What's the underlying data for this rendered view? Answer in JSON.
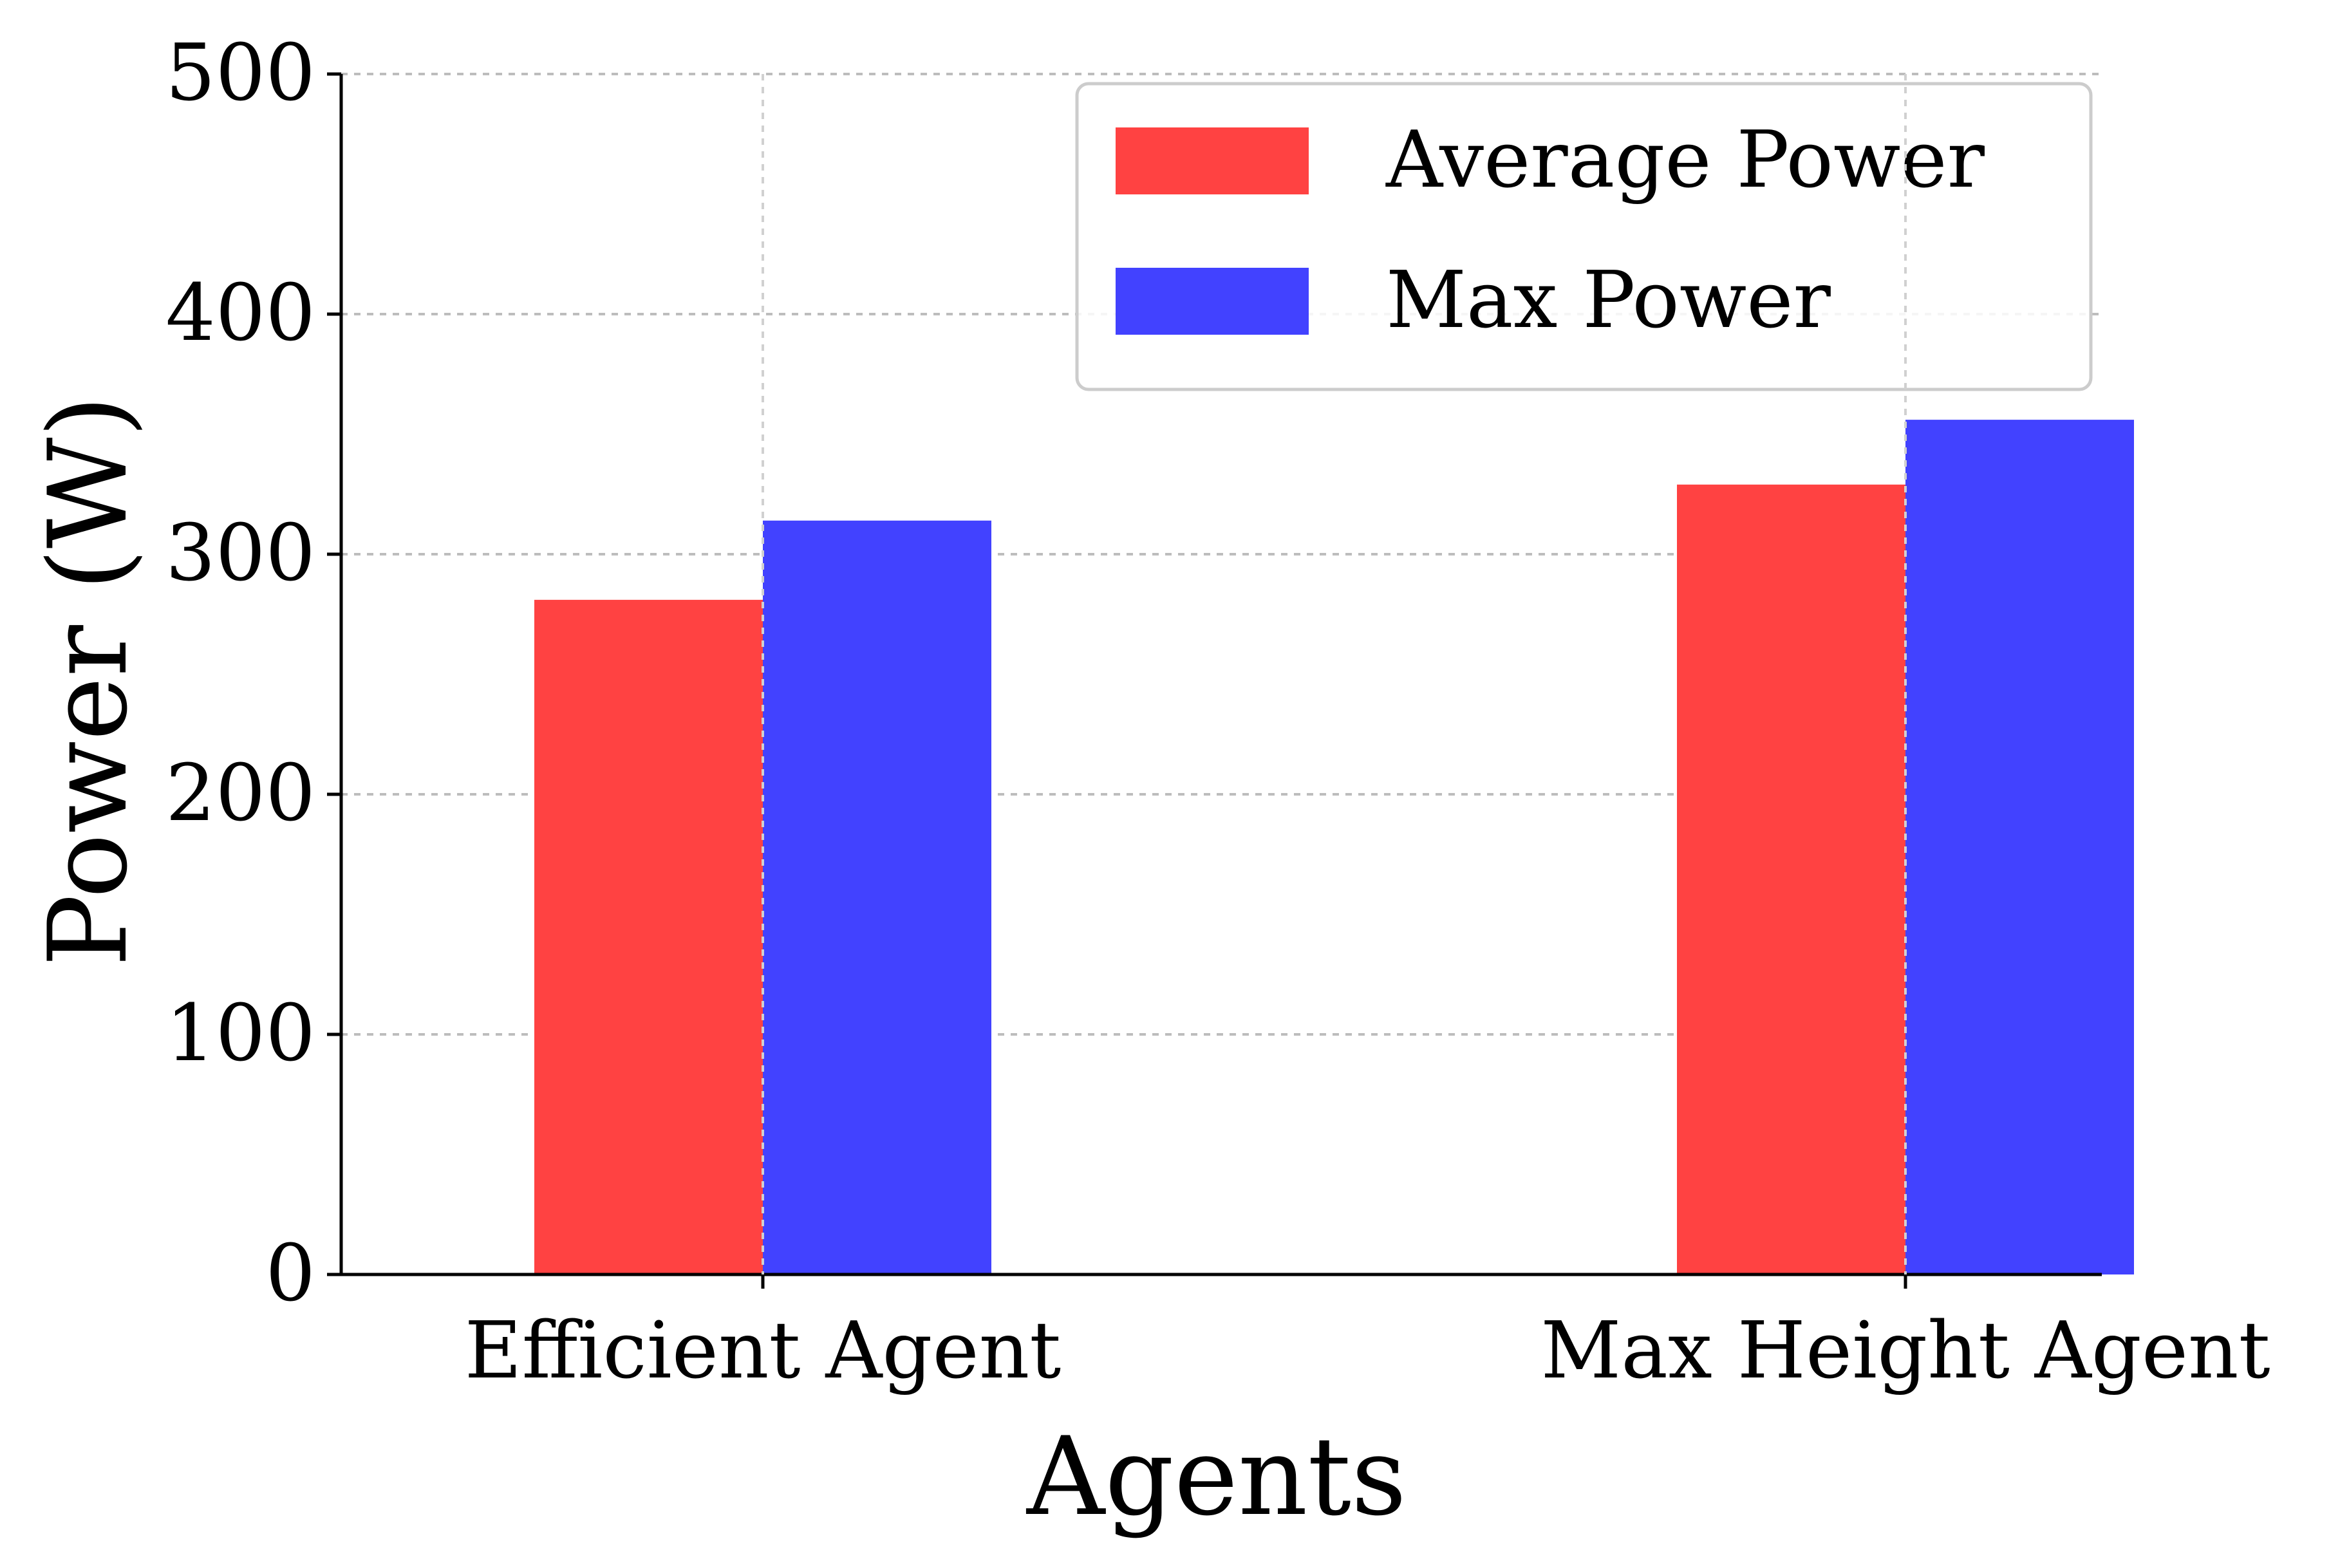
{
  "chart_data": {
    "type": "bar",
    "title": "",
    "xlabel": "Agents",
    "ylabel": "Power (W)",
    "categories": [
      "Efficient Agent",
      "Max Height Agent"
    ],
    "series": [
      {
        "name": "Average Power",
        "color": "#ff4242",
        "values": [
          281,
          329
        ]
      },
      {
        "name": "Max Power",
        "color": "#4242ff",
        "values": [
          314,
          356
        ]
      }
    ],
    "ylim": [
      0,
      500
    ],
    "yticks": [
      0,
      100,
      200,
      300,
      400,
      500
    ],
    "ytick_labels": [
      "0",
      "100",
      "200",
      "300",
      "400",
      "500"
    ],
    "grid": true,
    "legend_position": "upper-right"
  }
}
